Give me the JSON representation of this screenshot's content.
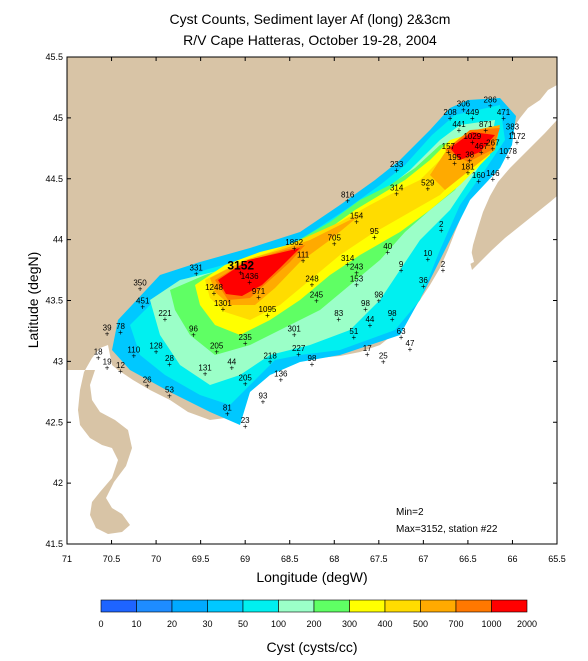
{
  "colors": {
    "land": "#d8c4a6",
    "sea": "#ffffff",
    "station_marker": "#000000"
  },
  "chart_data": {
    "type": "heatmap",
    "title": "Cyst Counts, Sediment layer Af (long) 2&3cm",
    "subtitle": "R/V Cape Hatteras, October 19-28, 2004",
    "xlabel": "Longitude (degW)",
    "ylabel": "Latitude (degN)",
    "xlim": [
      71,
      65.5
    ],
    "ylim": [
      41.5,
      45.5
    ],
    "xticks": [
      {
        "value": 71,
        "label": "71"
      },
      {
        "value": 70.5,
        "label": "70.5"
      },
      {
        "value": 70,
        "label": "70"
      },
      {
        "value": 69.5,
        "label": "69.5"
      },
      {
        "value": 69,
        "label": "69"
      },
      {
        "value": 68.5,
        "label": "68.5"
      },
      {
        "value": 68,
        "label": "68"
      },
      {
        "value": 67.5,
        "label": "67.5"
      },
      {
        "value": 67,
        "label": "67"
      },
      {
        "value": 66.5,
        "label": "66.5"
      },
      {
        "value": 66,
        "label": "66"
      },
      {
        "value": 65.5,
        "label": "65.5"
      }
    ],
    "yticks": [
      {
        "value": 45.5,
        "label": "45.5"
      },
      {
        "value": 45,
        "label": "45"
      },
      {
        "value": 44.5,
        "label": "44.5"
      },
      {
        "value": 44,
        "label": "44"
      },
      {
        "value": 43.5,
        "label": "43.5"
      },
      {
        "value": 43,
        "label": "43"
      },
      {
        "value": 42.5,
        "label": "42.5"
      },
      {
        "value": 42,
        "label": "42"
      },
      {
        "value": 41.5,
        "label": "41.5"
      }
    ],
    "colorbar": {
      "label": "Cyst (cysts/cc)",
      "boundaries": [
        "0",
        "10",
        "20",
        "30",
        "50",
        "100",
        "200",
        "300",
        "400",
        "500",
        "700",
        "1000",
        "2000"
      ],
      "colors": [
        "#1e64ff",
        "#1e8cff",
        "#00aaff",
        "#00c8ff",
        "#00f0f0",
        "#9bffc8",
        "#5fff64",
        "#ffff00",
        "#ffdc00",
        "#ffaa00",
        "#ff7800",
        "#ff0000"
      ]
    },
    "stations": [
      {
        "label": "306",
        "lon": 66.55,
        "lat": 45.07
      },
      {
        "label": "286",
        "lon": 66.25,
        "lat": 45.1
      },
      {
        "label": "208",
        "lon": 66.7,
        "lat": 45.0
      },
      {
        "label": "449",
        "lon": 66.45,
        "lat": 45.0
      },
      {
        "label": "471",
        "lon": 66.1,
        "lat": 45.0
      },
      {
        "label": "441",
        "lon": 66.6,
        "lat": 44.9
      },
      {
        "label": "871",
        "lon": 66.3,
        "lat": 44.9
      },
      {
        "label": "383",
        "lon": 66.0,
        "lat": 44.88
      },
      {
        "label": "1172",
        "lon": 65.95,
        "lat": 44.8
      },
      {
        "label": "1029",
        "lon": 66.45,
        "lat": 44.8
      },
      {
        "label": "157",
        "lon": 66.72,
        "lat": 44.72
      },
      {
        "label": "467",
        "lon": 66.35,
        "lat": 44.72
      },
      {
        "label": "267",
        "lon": 66.22,
        "lat": 44.75
      },
      {
        "label": "195",
        "lon": 66.65,
        "lat": 44.63
      },
      {
        "label": "38",
        "lon": 66.48,
        "lat": 44.65
      },
      {
        "label": "1078",
        "lon": 66.05,
        "lat": 44.68
      },
      {
        "label": "181",
        "lon": 66.5,
        "lat": 44.55
      },
      {
        "label": "160",
        "lon": 66.38,
        "lat": 44.48
      },
      {
        "label": "146",
        "lon": 66.22,
        "lat": 44.5
      },
      {
        "label": "233",
        "lon": 67.3,
        "lat": 44.57
      },
      {
        "label": "529",
        "lon": 66.95,
        "lat": 44.42
      },
      {
        "label": "314",
        "lon": 67.3,
        "lat": 44.38
      },
      {
        "label": "816",
        "lon": 67.85,
        "lat": 44.32
      },
      {
        "label": "154",
        "lon": 67.75,
        "lat": 44.15
      },
      {
        "label": "95",
        "lon": 67.55,
        "lat": 44.02
      },
      {
        "label": "40",
        "lon": 67.4,
        "lat": 43.9
      },
      {
        "label": "2",
        "lon": 66.8,
        "lat": 44.08
      },
      {
        "label": "10",
        "lon": 66.95,
        "lat": 43.84
      },
      {
        "label": "9",
        "lon": 67.25,
        "lat": 43.75
      },
      {
        "label": "2",
        "lon": 66.78,
        "lat": 43.75
      },
      {
        "label": "36",
        "lon": 67.0,
        "lat": 43.62
      },
      {
        "label": "705",
        "lon": 68.0,
        "lat": 43.97
      },
      {
        "label": "1862",
        "lon": 68.45,
        "lat": 43.93
      },
      {
        "label": "111",
        "lon": 68.35,
        "lat": 43.83
      },
      {
        "label": "314",
        "lon": 67.85,
        "lat": 43.8
      },
      {
        "label": "243",
        "lon": 67.75,
        "lat": 43.73
      },
      {
        "label": "153",
        "lon": 67.75,
        "lat": 43.63
      },
      {
        "label": "248",
        "lon": 68.25,
        "lat": 43.63
      },
      {
        "label": "3152",
        "lon": 69.05,
        "lat": 43.73
      },
      {
        "label": "1436",
        "lon": 68.95,
        "lat": 43.65
      },
      {
        "label": "331",
        "lon": 69.55,
        "lat": 43.72
      },
      {
        "label": "350",
        "lon": 70.18,
        "lat": 43.6
      },
      {
        "label": "1248",
        "lon": 69.35,
        "lat": 43.56
      },
      {
        "label": "971",
        "lon": 68.85,
        "lat": 43.53
      },
      {
        "label": "245",
        "lon": 68.2,
        "lat": 43.5
      },
      {
        "label": "98",
        "lon": 67.5,
        "lat": 43.5
      },
      {
        "label": "98",
        "lon": 67.65,
        "lat": 43.43
      },
      {
        "label": "451",
        "lon": 70.15,
        "lat": 43.45
      },
      {
        "label": "1301",
        "lon": 69.25,
        "lat": 43.43
      },
      {
        "label": "1095",
        "lon": 68.75,
        "lat": 43.38
      },
      {
        "label": "83",
        "lon": 67.95,
        "lat": 43.35
      },
      {
        "label": "98",
        "lon": 67.35,
        "lat": 43.35
      },
      {
        "label": "44",
        "lon": 67.6,
        "lat": 43.3
      },
      {
        "label": "221",
        "lon": 69.9,
        "lat": 43.35
      },
      {
        "label": "39",
        "lon": 70.55,
        "lat": 43.23
      },
      {
        "label": "78",
        "lon": 70.4,
        "lat": 43.24
      },
      {
        "label": "96",
        "lon": 69.58,
        "lat": 43.22
      },
      {
        "label": "301",
        "lon": 68.45,
        "lat": 43.22
      },
      {
        "label": "51",
        "lon": 67.78,
        "lat": 43.2
      },
      {
        "label": "63",
        "lon": 67.25,
        "lat": 43.2
      },
      {
        "label": "235",
        "lon": 69.0,
        "lat": 43.15
      },
      {
        "label": "47",
        "lon": 67.15,
        "lat": 43.1
      },
      {
        "label": "110",
        "lon": 70.25,
        "lat": 43.05
      },
      {
        "label": "128",
        "lon": 70.0,
        "lat": 43.08
      },
      {
        "label": "205",
        "lon": 69.32,
        "lat": 43.08
      },
      {
        "label": "227",
        "lon": 68.4,
        "lat": 43.06
      },
      {
        "label": "17",
        "lon": 67.63,
        "lat": 43.06
      },
      {
        "label": "18",
        "lon": 70.65,
        "lat": 43.03
      },
      {
        "label": "28",
        "lon": 69.85,
        "lat": 42.98
      },
      {
        "label": "218",
        "lon": 68.72,
        "lat": 43.0
      },
      {
        "label": "98",
        "lon": 68.25,
        "lat": 42.98
      },
      {
        "label": "25",
        "lon": 67.45,
        "lat": 43.0
      },
      {
        "label": "19",
        "lon": 70.55,
        "lat": 42.95
      },
      {
        "label": "44",
        "lon": 69.15,
        "lat": 42.95
      },
      {
        "label": "12",
        "lon": 70.4,
        "lat": 42.92
      },
      {
        "label": "131",
        "lon": 69.45,
        "lat": 42.9
      },
      {
        "label": "136",
        "lon": 68.6,
        "lat": 42.85
      },
      {
        "label": "205",
        "lon": 69.0,
        "lat": 42.82
      },
      {
        "label": "26",
        "lon": 70.1,
        "lat": 42.8
      },
      {
        "label": "53",
        "lon": 69.85,
        "lat": 42.72
      },
      {
        "label": "93",
        "lon": 68.8,
        "lat": 42.67
      },
      {
        "label": "81",
        "lon": 69.2,
        "lat": 42.57
      },
      {
        "label": "23",
        "lon": 69.0,
        "lat": 42.47
      }
    ],
    "annotations": {
      "max_label": "3152",
      "min_text": "Min=2",
      "max_text": "Max=3152, station #22"
    }
  }
}
